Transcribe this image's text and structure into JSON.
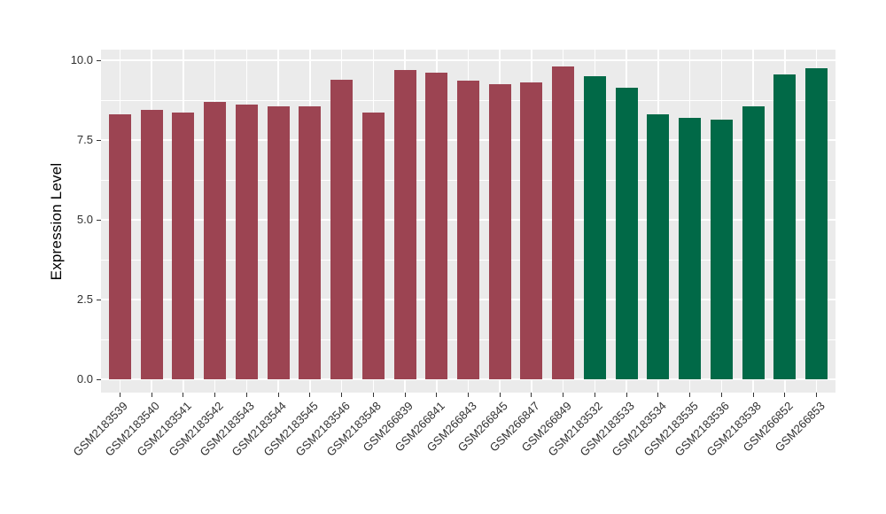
{
  "chart_data": {
    "type": "bar",
    "title": "",
    "xlabel": "",
    "ylabel": "Expression Level",
    "ylim": [
      0,
      10.3
    ],
    "yticks": [
      0,
      2.5,
      5,
      7.5,
      10
    ],
    "ytick_labels": [
      "0.0",
      "2.5",
      "5.0",
      "7.5",
      "10.0"
    ],
    "minor_ticks": [
      1.25,
      3.75,
      6.25,
      8.75
    ],
    "grid": "on",
    "legend": "none",
    "x_label_rotation_deg": 45,
    "categories": [
      "GSM2183539",
      "GSM2183540",
      "GSM2183541",
      "GSM2183542",
      "GSM2183543",
      "GSM2183544",
      "GSM2183545",
      "GSM2183546",
      "GSM2183548",
      "GSM266839",
      "GSM266841",
      "GSM266843",
      "GSM266845",
      "GSM266847",
      "GSM266849",
      "GSM2183532",
      "GSM2183533",
      "GSM2183534",
      "GSM2183535",
      "GSM2183536",
      "GSM2183538",
      "GSM266852",
      "GSM266853"
    ],
    "values": [
      8.3,
      8.45,
      8.35,
      8.7,
      8.6,
      8.55,
      8.55,
      9.4,
      8.35,
      9.7,
      9.6,
      9.35,
      9.25,
      9.3,
      9.8,
      9.5,
      9.15,
      8.3,
      8.2,
      8.15,
      8.55,
      9.55,
      9.75
    ],
    "bar_colors": [
      "#9C4452",
      "#9C4452",
      "#9C4452",
      "#9C4452",
      "#9C4452",
      "#9C4452",
      "#9C4452",
      "#9C4452",
      "#9C4452",
      "#9C4452",
      "#9C4452",
      "#9C4452",
      "#9C4452",
      "#9C4452",
      "#9C4452",
      "#016947",
      "#016947",
      "#016947",
      "#016947",
      "#016947",
      "#016947",
      "#016947",
      "#016947"
    ],
    "colors": {
      "group_1_fill": "#9C4452",
      "group_2_fill": "#016947",
      "panel_bg": "#EBEBEB",
      "grid": "#FFFFFF",
      "axis_text": "#303030",
      "axis_title": "#000000",
      "tick_mark": "#333333",
      "background": "#FFFFFF"
    }
  }
}
